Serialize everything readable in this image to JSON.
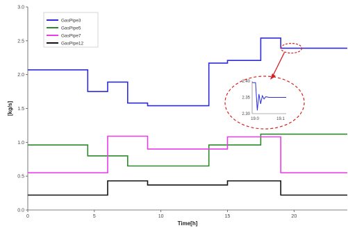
{
  "chart_data": {
    "type": "line",
    "title": "",
    "xlabel": "Time[h]",
    "ylabel": "[kg/s]",
    "xlim": [
      0,
      24
    ],
    "ylim": [
      0,
      3.0
    ],
    "xticks": [
      0,
      5,
      10,
      15,
      20
    ],
    "xtick_labels": [
      "0",
      "5",
      "10",
      "15",
      "20"
    ],
    "yticks": [
      0,
      0.5,
      1.0,
      1.5,
      2.0,
      2.5,
      3.0
    ],
    "ytick_labels": [
      "0.0",
      "0.5",
      "1.0",
      "1.5",
      "2.0",
      "2.5",
      "3.0"
    ],
    "grid": false,
    "legend_position": "top-left",
    "series": [
      {
        "name": "GasPipe3",
        "color": "#2b2bdc",
        "x": [
          0,
          4.5,
          4.5,
          6,
          6,
          7.5,
          7.5,
          9,
          9,
          13.6,
          13.6,
          15,
          15,
          17.5,
          17.5,
          19,
          19,
          24
        ],
        "y": [
          2.07,
          2.07,
          1.75,
          1.75,
          1.89,
          1.89,
          1.58,
          1.58,
          1.54,
          1.54,
          2.17,
          2.17,
          2.21,
          2.21,
          2.54,
          2.54,
          2.39,
          2.39
        ]
      },
      {
        "name": "GasPipe5",
        "color": "#2a8a2a",
        "x": [
          0,
          4.5,
          4.5,
          7.5,
          7.5,
          13.6,
          13.6,
          17.5,
          17.5,
          24
        ],
        "y": [
          0.96,
          0.96,
          0.8,
          0.8,
          0.65,
          0.65,
          0.96,
          0.96,
          1.12,
          1.12
        ]
      },
      {
        "name": "GasPipe7",
        "color": "#e83ce8",
        "x": [
          0,
          6,
          6,
          9,
          9,
          15,
          15,
          19,
          19,
          24
        ],
        "y": [
          0.55,
          0.55,
          1.09,
          1.09,
          0.9,
          0.9,
          1.08,
          1.08,
          0.55,
          0.55
        ]
      },
      {
        "name": "GasPipe12",
        "color": "#111111",
        "x": [
          0,
          6,
          6,
          9,
          9,
          15,
          15,
          19,
          19,
          24
        ],
        "y": [
          0.22,
          0.22,
          0.43,
          0.43,
          0.37,
          0.37,
          0.43,
          0.43,
          0.22,
          0.22
        ]
      }
    ],
    "inset": {
      "xlim": [
        19.0,
        19.1
      ],
      "ylim": [
        2.3,
        2.4
      ],
      "xtick_labels": [
        "19.0",
        "19.1"
      ],
      "ytick_labels": [
        "2.40",
        "2.35",
        "2.30"
      ],
      "series": {
        "color": "#2b2bdc",
        "x": [
          19.0,
          19.01,
          19.015,
          19.02,
          19.025,
          19.03,
          19.035,
          19.04,
          19.05,
          19.06,
          19.1
        ],
        "y": [
          2.395,
          2.395,
          2.31,
          2.36,
          2.33,
          2.355,
          2.345,
          2.352,
          2.35,
          2.35,
          2.35
        ]
      }
    }
  }
}
